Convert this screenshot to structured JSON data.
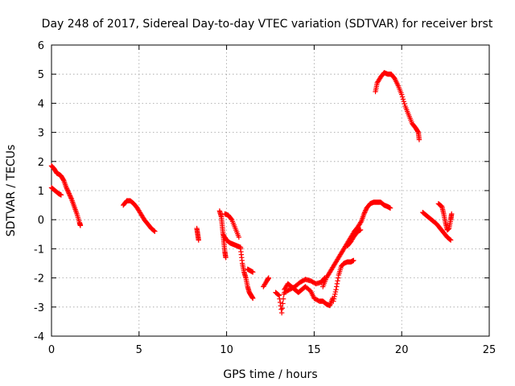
{
  "chart_data": {
    "type": "scatter",
    "title": "Day 248 of 2017, Sidereal Day-to-day VTEC variation (SDTVAR) for receiver brst",
    "xlabel": "GPS time / hours",
    "ylabel": "SDTVAR / TECUs",
    "xlim": [
      0,
      25
    ],
    "ylim": [
      -4,
      6
    ],
    "xticks": [
      "0",
      "5",
      "10",
      "15",
      "20",
      "25"
    ],
    "yticks": [
      "-4",
      "-3",
      "-2",
      "-1",
      "0",
      "1",
      "2",
      "3",
      "4",
      "5",
      "6"
    ],
    "grid": true,
    "marker": "plus",
    "color": "#ff0000",
    "series": [
      {
        "segments": [
          [
            [
              0.0,
              1.85
            ],
            [
              0.15,
              1.75
            ],
            [
              0.3,
              1.6
            ],
            [
              0.45,
              1.55
            ],
            [
              0.55,
              1.5
            ],
            [
              0.7,
              1.35
            ],
            [
              0.85,
              1.1
            ],
            [
              1.0,
              0.9
            ],
            [
              1.15,
              0.7
            ],
            [
              1.3,
              0.45
            ],
            [
              1.45,
              0.2
            ],
            [
              1.6,
              -0.1
            ],
            [
              1.65,
              -0.2
            ]
          ],
          [
            [
              0.0,
              1.1
            ],
            [
              0.2,
              1.0
            ],
            [
              0.4,
              0.9
            ],
            [
              0.55,
              0.85
            ]
          ],
          [
            [
              4.1,
              0.5
            ],
            [
              4.3,
              0.65
            ],
            [
              4.5,
              0.65
            ],
            [
              4.7,
              0.55
            ],
            [
              4.9,
              0.4
            ],
            [
              5.1,
              0.2
            ],
            [
              5.3,
              0.0
            ],
            [
              5.5,
              -0.15
            ],
            [
              5.7,
              -0.3
            ],
            [
              5.9,
              -0.4
            ]
          ],
          [
            [
              8.3,
              -0.3
            ],
            [
              8.35,
              -0.5
            ],
            [
              8.4,
              -0.7
            ]
          ],
          [
            [
              9.6,
              0.3
            ],
            [
              9.7,
              0.1
            ],
            [
              9.75,
              -0.2
            ],
            [
              9.8,
              -0.5
            ],
            [
              9.85,
              -0.8
            ],
            [
              9.9,
              -1.1
            ],
            [
              9.95,
              -1.3
            ]
          ],
          [
            [
              9.8,
              -0.5
            ],
            [
              10.0,
              -0.7
            ],
            [
              10.2,
              -0.8
            ],
            [
              10.4,
              -0.85
            ],
            [
              10.6,
              -0.9
            ],
            [
              10.8,
              -0.95
            ]
          ],
          [
            [
              9.9,
              0.2
            ],
            [
              10.1,
              0.15
            ],
            [
              10.3,
              0.0
            ],
            [
              10.5,
              -0.3
            ],
            [
              10.7,
              -0.6
            ]
          ],
          [
            [
              10.8,
              -1.0
            ],
            [
              10.9,
              -1.5
            ],
            [
              11.0,
              -1.8
            ],
            [
              11.1,
              -2.0
            ],
            [
              11.2,
              -2.3
            ],
            [
              11.3,
              -2.5
            ],
            [
              11.4,
              -2.6
            ],
            [
              11.5,
              -2.7
            ]
          ],
          [
            [
              11.2,
              -1.7
            ],
            [
              11.35,
              -1.75
            ],
            [
              11.5,
              -1.8
            ]
          ],
          [
            [
              12.1,
              -2.3
            ],
            [
              12.3,
              -2.1
            ],
            [
              12.4,
              -2.0
            ]
          ],
          [
            [
              12.8,
              -2.5
            ],
            [
              13.0,
              -2.6
            ],
            [
              13.15,
              -3.2
            ],
            [
              13.3,
              -2.4
            ],
            [
              13.5,
              -2.2
            ],
            [
              13.7,
              -2.3
            ],
            [
              13.9,
              -2.4
            ],
            [
              14.1,
              -2.5
            ],
            [
              14.3,
              -2.4
            ],
            [
              14.5,
              -2.3
            ],
            [
              14.8,
              -2.45
            ],
            [
              15.0,
              -2.7
            ],
            [
              15.3,
              -2.8
            ],
            [
              15.5,
              -2.8
            ],
            [
              15.7,
              -2.9
            ],
            [
              15.9,
              -2.95
            ],
            [
              16.05,
              -2.7
            ]
          ],
          [
            [
              13.3,
              -2.5
            ],
            [
              13.6,
              -2.4
            ],
            [
              13.9,
              -2.3
            ],
            [
              14.2,
              -2.15
            ],
            [
              14.5,
              -2.05
            ],
            [
              14.8,
              -2.1
            ],
            [
              15.1,
              -2.2
            ],
            [
              15.4,
              -2.15
            ],
            [
              15.6,
              -2.0
            ]
          ],
          [
            [
              15.5,
              -2.3
            ],
            [
              15.7,
              -2.0
            ],
            [
              15.9,
              -1.8
            ],
            [
              16.1,
              -1.6
            ],
            [
              16.3,
              -1.4
            ],
            [
              16.5,
              -1.2
            ],
            [
              16.7,
              -1.0
            ],
            [
              16.9,
              -0.8
            ],
            [
              17.1,
              -0.6
            ],
            [
              17.3,
              -0.4
            ],
            [
              17.5,
              -0.25
            ],
            [
              17.7,
              -0.05
            ],
            [
              17.85,
              0.2
            ],
            [
              18.0,
              0.4
            ],
            [
              18.2,
              0.55
            ],
            [
              18.4,
              0.6
            ],
            [
              18.6,
              0.6
            ],
            [
              18.8,
              0.6
            ],
            [
              19.0,
              0.5
            ],
            [
              19.2,
              0.45
            ],
            [
              19.35,
              0.4
            ]
          ],
          [
            [
              16.1,
              -2.8
            ],
            [
              16.25,
              -2.4
            ],
            [
              16.4,
              -1.9
            ],
            [
              16.55,
              -1.6
            ],
            [
              16.7,
              -1.5
            ],
            [
              16.9,
              -1.45
            ],
            [
              17.1,
              -1.45
            ],
            [
              17.25,
              -1.4
            ]
          ],
          [
            [
              16.9,
              -0.9
            ],
            [
              17.1,
              -0.75
            ],
            [
              17.3,
              -0.55
            ],
            [
              17.5,
              -0.4
            ],
            [
              17.65,
              -0.35
            ]
          ],
          [
            [
              18.5,
              4.4
            ],
            [
              18.6,
              4.7
            ],
            [
              18.8,
              4.9
            ],
            [
              19.0,
              5.05
            ],
            [
              19.2,
              5.0
            ],
            [
              19.4,
              5.0
            ],
            [
              19.6,
              4.85
            ],
            [
              19.8,
              4.6
            ],
            [
              20.0,
              4.3
            ],
            [
              20.2,
              3.9
            ],
            [
              20.4,
              3.6
            ],
            [
              20.6,
              3.3
            ],
            [
              20.8,
              3.15
            ],
            [
              20.95,
              3.0
            ],
            [
              21.0,
              2.75
            ]
          ],
          [
            [
              21.2,
              0.25
            ],
            [
              21.4,
              0.15
            ],
            [
              21.6,
              0.05
            ],
            [
              21.8,
              -0.05
            ],
            [
              22.0,
              -0.15
            ],
            [
              22.2,
              -0.3
            ],
            [
              22.4,
              -0.45
            ],
            [
              22.6,
              -0.6
            ],
            [
              22.8,
              -0.7
            ]
          ],
          [
            [
              22.1,
              0.55
            ],
            [
              22.3,
              0.45
            ],
            [
              22.4,
              0.2
            ],
            [
              22.5,
              -0.1
            ],
            [
              22.6,
              -0.35
            ],
            [
              22.7,
              -0.3
            ],
            [
              22.8,
              0.0
            ],
            [
              22.85,
              0.2
            ]
          ]
        ]
      }
    ]
  }
}
